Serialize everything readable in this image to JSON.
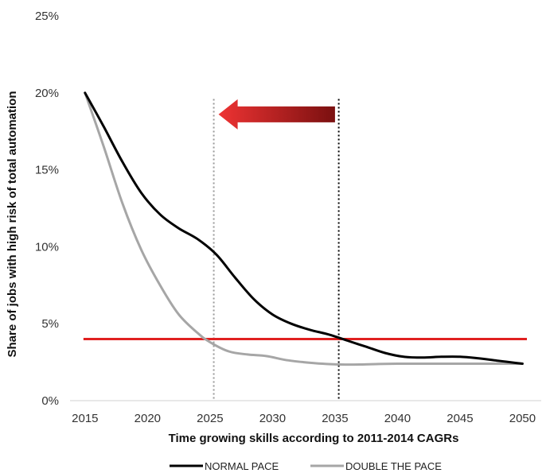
{
  "chart_data": {
    "type": "line",
    "title": "",
    "xlabel": "Time growing skills according to 2011-2014 CAGRs",
    "ylabel": "Share of jobs with high risk of total automation",
    "x_ticks": [
      "2015",
      "2020",
      "2025",
      "2030",
      "2035",
      "2040",
      "2045",
      "2050"
    ],
    "y_ticks": [
      "0%",
      "5%",
      "10%",
      "15%",
      "20%",
      "25%"
    ],
    "xlim": [
      2013.8,
      2051.5
    ],
    "ylim": [
      0,
      25
    ],
    "grid": false,
    "legend_position": "bottom",
    "series": [
      {
        "name": "NORMAL PACE",
        "color": "#000000",
        "x": [
          2015,
          2016.5,
          2018,
          2019.5,
          2021,
          2022.5,
          2024,
          2025.5,
          2027,
          2028.5,
          2030,
          2031.5,
          2033,
          2034.5,
          2036,
          2037.5,
          2039,
          2040.5,
          2042,
          2043.5,
          2045,
          2046.5,
          2048,
          2049.5,
          2050
        ],
        "y": [
          20.0,
          17.8,
          15.5,
          13.5,
          12.1,
          11.2,
          10.5,
          9.5,
          8.0,
          6.6,
          5.6,
          5.0,
          4.6,
          4.3,
          3.9,
          3.5,
          3.1,
          2.85,
          2.8,
          2.85,
          2.85,
          2.75,
          2.6,
          2.45,
          2.4
        ]
      },
      {
        "name": "DOUBLE THE PACE",
        "color": "#a6a6a6",
        "x": [
          2015,
          2016.5,
          2018,
          2019.5,
          2021,
          2022.5,
          2024,
          2025,
          2026.5,
          2028,
          2029.5,
          2031,
          2032.5,
          2034,
          2035.5,
          2037,
          2038.5,
          2040,
          2042,
          2044,
          2046,
          2048,
          2050
        ],
        "y": [
          20.0,
          16.5,
          12.8,
          9.8,
          7.5,
          5.6,
          4.4,
          3.8,
          3.2,
          3.0,
          2.9,
          2.65,
          2.5,
          2.4,
          2.35,
          2.35,
          2.38,
          2.4,
          2.4,
          2.4,
          2.4,
          2.4,
          2.4
        ]
      }
    ],
    "annotations": {
      "threshold_line": {
        "y": 4.0,
        "color": "#e02020"
      },
      "vertical_lines": [
        {
          "x": 2025.3,
          "color": "#9a9a9a"
        },
        {
          "x": 2035.3,
          "color": "#000000"
        }
      ],
      "arrow": {
        "from_x": 2035.0,
        "to_x": 2025.3,
        "y": 18.6,
        "color_start": "#ee3333",
        "color_end": "#7a1010"
      }
    }
  }
}
